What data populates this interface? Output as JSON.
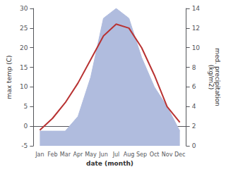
{
  "chart_data": {
    "type": "line",
    "categories": [
      "Jan",
      "Feb",
      "Mar",
      "Apr",
      "May",
      "Jun",
      "Jul",
      "Aug",
      "Sep",
      "Oct",
      "Nov",
      "Dec"
    ],
    "series": [
      {
        "type": "area",
        "axis": "y2",
        "color": "#b0bcde",
        "values": [
          1.5,
          1.5,
          1.5,
          3,
          7,
          13,
          14,
          13,
          9,
          6,
          4,
          1.5
        ]
      },
      {
        "type": "line",
        "color": "#b83232",
        "values": [
          -1,
          2,
          6,
          11,
          17,
          23,
          26,
          25,
          20,
          13,
          5,
          1
        ]
      }
    ],
    "xlabel": "date (month)",
    "ylabel": "max temp (C)",
    "y2label": "med. precipitation\n(kg/m2)",
    "ylim": [
      -5,
      30
    ],
    "yticks": [
      -5,
      0,
      5,
      10,
      15,
      20,
      25,
      30
    ],
    "y2lim": [
      0,
      14
    ],
    "y2ticks": [
      0,
      2,
      4,
      6,
      8,
      10,
      12,
      14
    ],
    "grid": false
  }
}
